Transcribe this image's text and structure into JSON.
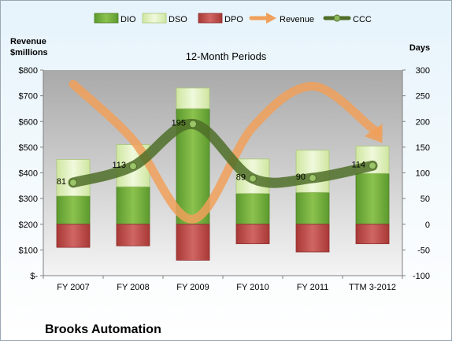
{
  "company_name": "Brooks Automation",
  "colors": {
    "dio": "#6aa636",
    "dso": "#d8edaa",
    "dpo": "#bd4b48",
    "revenue": "#f0a05a",
    "ccc": "#4f6e28"
  },
  "chart_data": {
    "type": "bar",
    "title": "12-Month Periods",
    "ylabel": "Revenue\n$millions",
    "y2label": "Days",
    "categories": [
      "FY 2007",
      "FY 2008",
      "FY 2009",
      "FY 2010",
      "FY 2011",
      "TTM 3-2012"
    ],
    "y_ticks": [
      "$-",
      "$100",
      "$200",
      "$300",
      "$400",
      "$500",
      "$600",
      "$700",
      "$800"
    ],
    "y2_ticks": [
      "-100",
      "-50",
      "0",
      "50",
      "100",
      "150",
      "200",
      "250",
      "300"
    ],
    "ylim": [
      0,
      800
    ],
    "y2lim": [
      -100,
      300
    ],
    "legend_position": "top",
    "grid": false,
    "series": [
      {
        "name": "DIO",
        "type": "stacked-bar",
        "axis": "days",
        "values": [
          55,
          73,
          225,
          60,
          62,
          99
        ]
      },
      {
        "name": "DSO",
        "type": "stacked-bar",
        "axis": "days",
        "values": [
          71,
          82,
          40,
          67,
          82,
          53
        ]
      },
      {
        "name": "DPO",
        "type": "negative-bar",
        "axis": "days",
        "values": [
          -45,
          -42,
          -70,
          -38,
          -54,
          -38
        ]
      },
      {
        "name": "Revenue",
        "type": "line-arrow",
        "axis": "revenue",
        "values": [
          745,
          528,
          220,
          578,
          737,
          572
        ]
      },
      {
        "name": "CCC",
        "type": "line-markers",
        "axis": "days",
        "values": [
          81,
          113,
          195,
          89,
          90,
          114
        ],
        "labels": [
          "81",
          "113",
          "195",
          "89",
          "90",
          "114"
        ]
      }
    ]
  }
}
